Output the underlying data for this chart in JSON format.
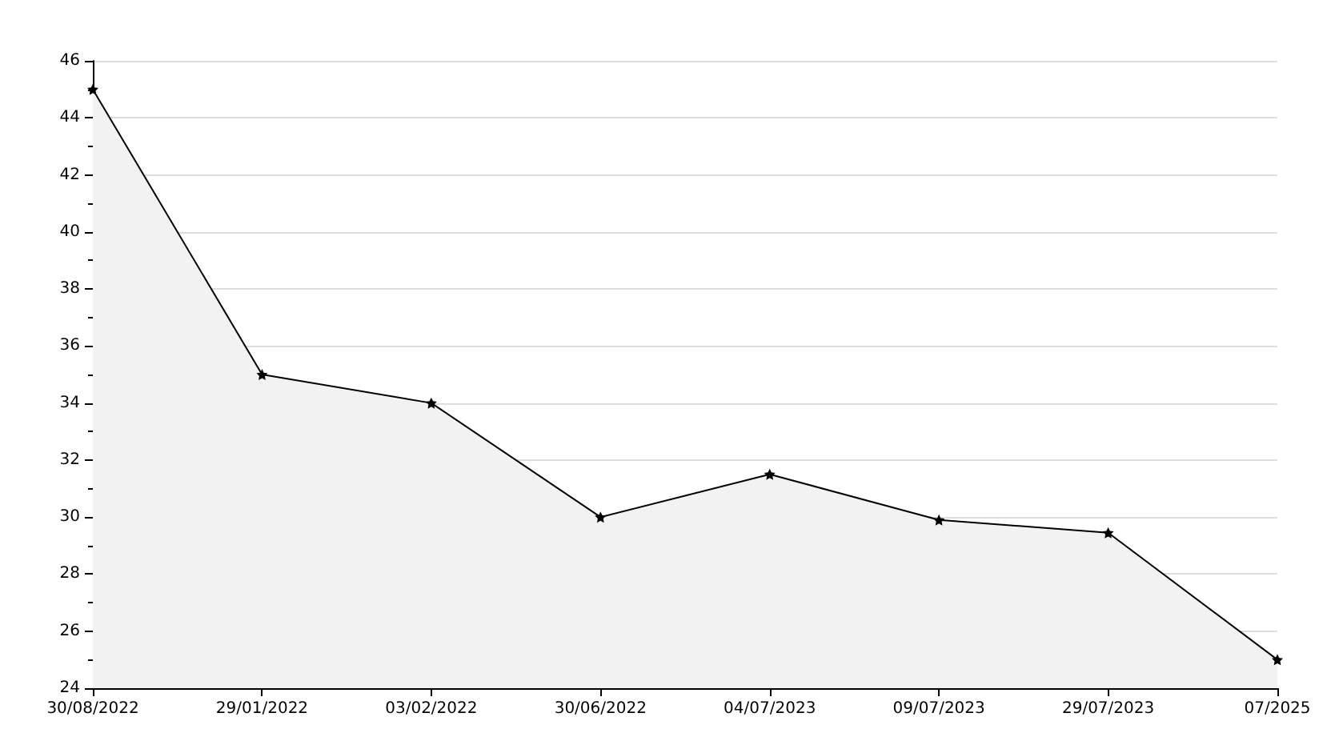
{
  "chart_data": {
    "type": "area",
    "categories": [
      "30/08/2022",
      "29/01/2022",
      "03/02/2022",
      "30/06/2022",
      "04/07/2023",
      "09/07/2023",
      "29/07/2023",
      "07/2025"
    ],
    "series": [
      {
        "color": "#000000",
        "values": [
          45,
          35,
          34,
          30,
          31.5,
          29.9,
          29.45,
          25
        ]
      }
    ],
    "ylim": [
      24,
      46
    ],
    "yticks": [
      24,
      26,
      28,
      30,
      32,
      34,
      36,
      38,
      40,
      42,
      44,
      46
    ],
    "grid": "y",
    "marker": "star",
    "line_style": "solid"
  }
}
